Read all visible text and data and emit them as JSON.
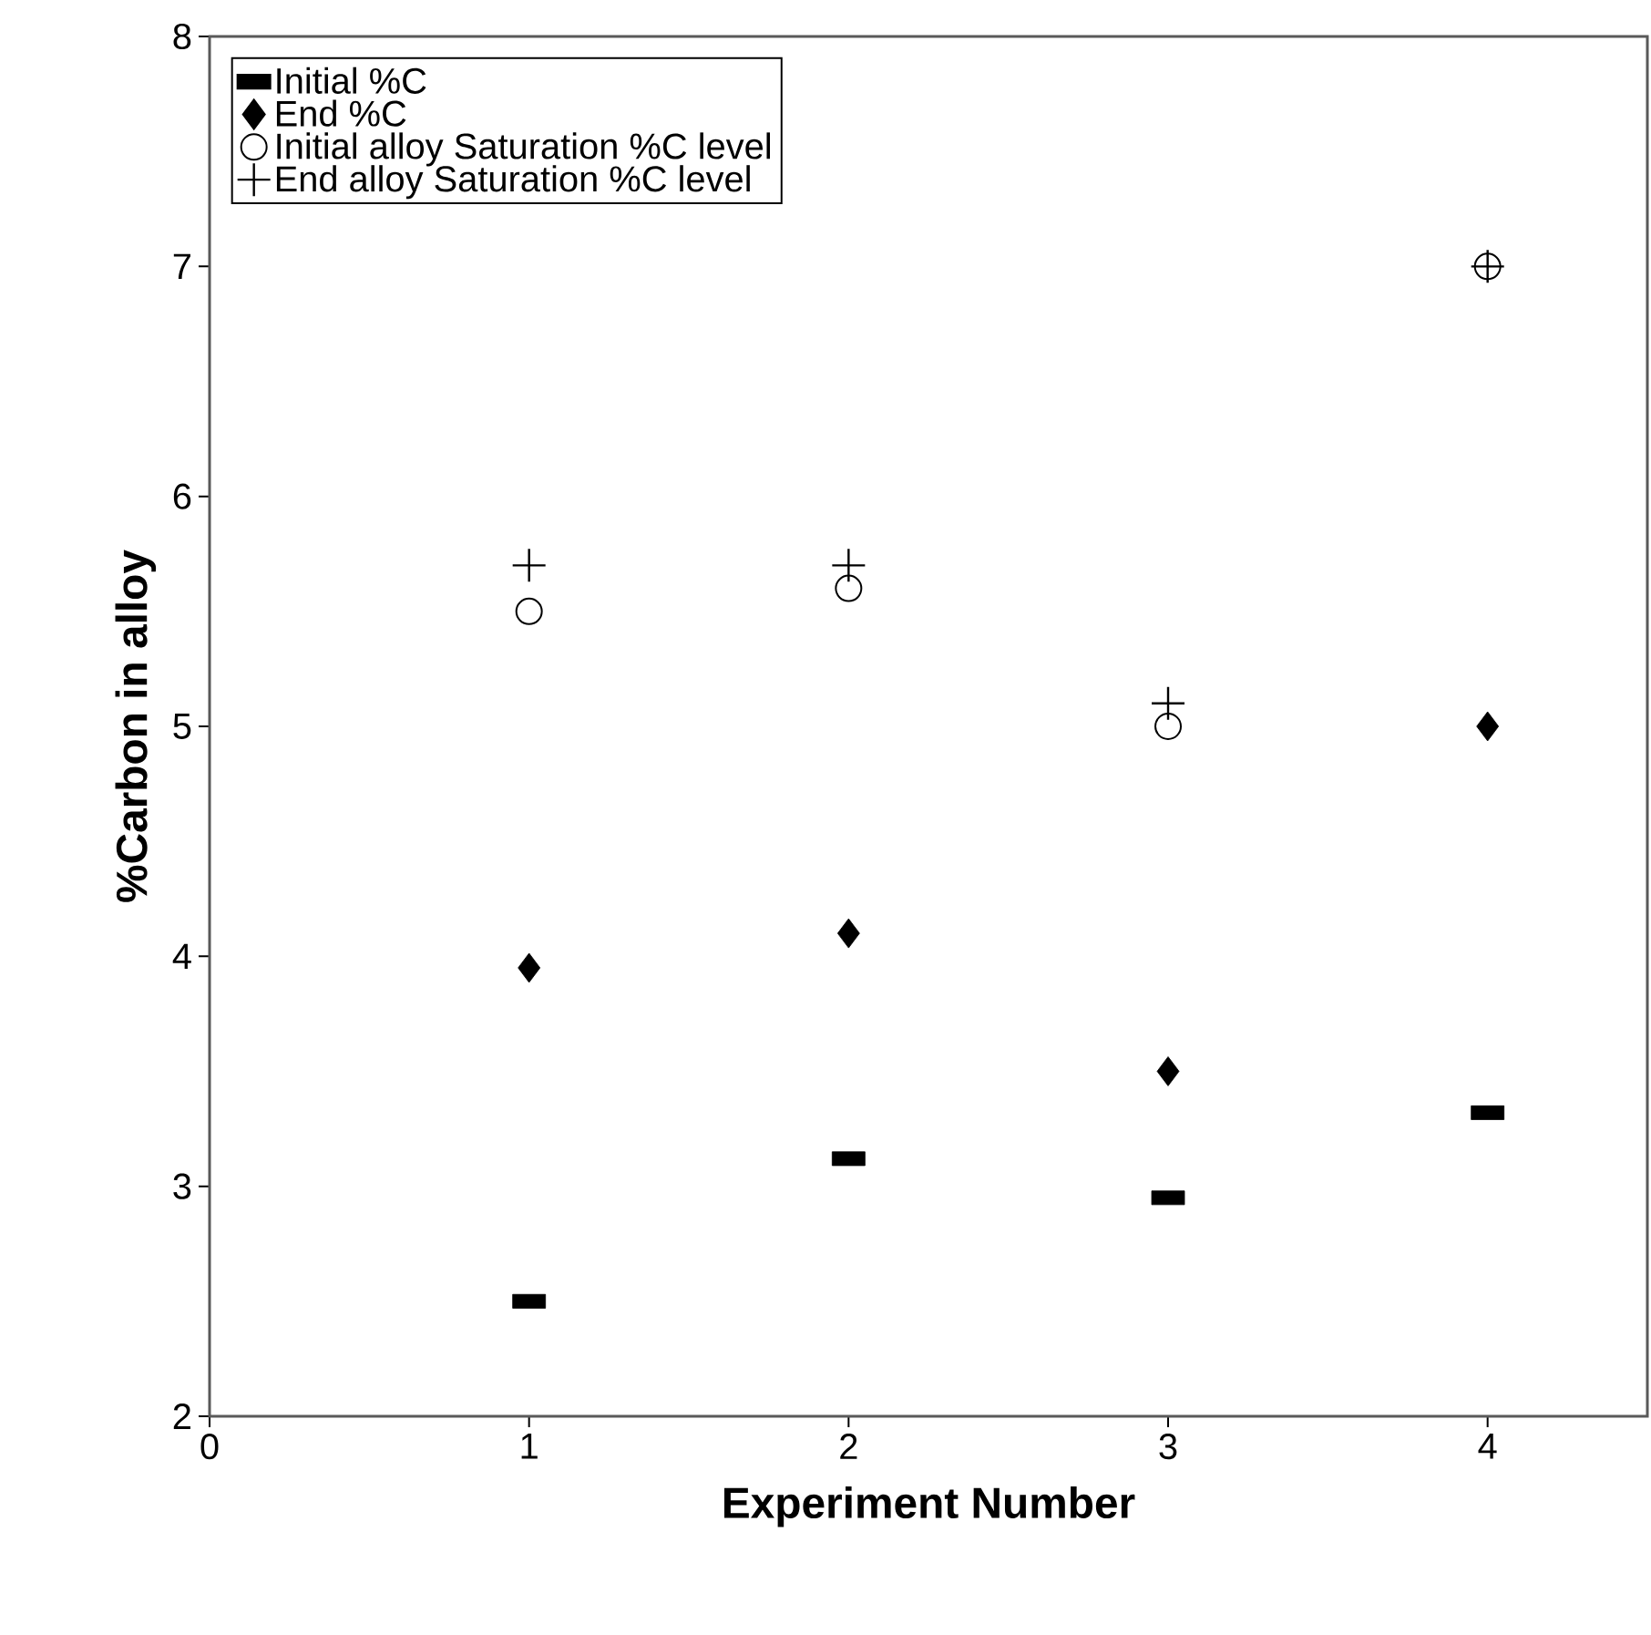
{
  "chart_data": {
    "type": "scatter",
    "xlabel": "Experiment Number",
    "ylabel": "%Carbon in alloy",
    "x": [
      1,
      2,
      3,
      4
    ],
    "series": [
      {
        "name": "Initial %C",
        "color": "#000000",
        "marker": "square",
        "values": [
          2.5,
          3.12,
          2.95,
          3.32
        ]
      },
      {
        "name": "End %C",
        "color": "#000000",
        "marker": "diamond",
        "values": [
          3.95,
          4.1,
          3.5,
          5.0
        ]
      },
      {
        "name": "Initial alloy Saturation %C level",
        "color": "#000000",
        "marker": "circle",
        "values": [
          5.5,
          5.6,
          5.0,
          7.0
        ]
      },
      {
        "name": "End alloy Saturation %C level",
        "color": "#000000",
        "marker": "cross",
        "values": [
          5.7,
          5.7,
          5.1,
          7.0
        ]
      }
    ],
    "xlim": [
      0,
      4.5
    ],
    "ylim": [
      2,
      8
    ],
    "xticks": [
      0,
      1,
      2,
      3,
      4
    ],
    "yticks": [
      2,
      3,
      4,
      5,
      6,
      7,
      8
    ],
    "grid": false,
    "legend": "top left"
  }
}
